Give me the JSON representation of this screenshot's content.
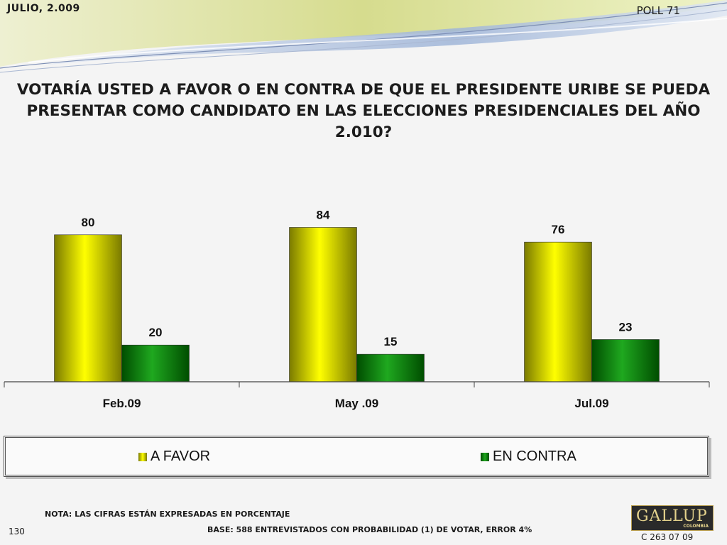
{
  "header": {
    "date": "JULIO, 2.009",
    "poll": "POLL 71"
  },
  "title": {
    "line1": "VOTARÍA USTED A FAVOR O EN CONTRA DE QUE EL PRESIDENTE URIBE SE PUEDA",
    "line2": "PRESENTAR COMO CANDIDATO EN LAS ELECCIONES PRESIDENCIALES DEL AÑO 2.010?"
  },
  "colors": {
    "favor_light": "#ffff00",
    "favor_dark": "#7a7a00",
    "contra_light": "#1fa81f",
    "contra_dark": "#004d00",
    "swoosh_green": "#c9d27a",
    "swoosh_blue": "#5d7fb0"
  },
  "chart_data": {
    "type": "bar",
    "categories": [
      "Feb.09",
      "May .09",
      "Jul.09"
    ],
    "series": [
      {
        "name": "A FAVOR",
        "values": [
          80,
          84,
          76
        ]
      },
      {
        "name": "EN CONTRA",
        "values": [
          20,
          15,
          23
        ]
      }
    ],
    "ylim": [
      0,
      100
    ],
    "grid": false,
    "legend_position": "bottom"
  },
  "footer": {
    "nota": "NOTA: LAS CIFRAS ESTÁN EXPRESADAS EN PORCENTAJE",
    "base": "BASE:  588 ENTREVISTADOS CON PROBABILIDAD (1) DE VOTAR, ERROR 4%",
    "page_number": "130",
    "code": "C 263 07 09"
  },
  "logo": {
    "main": "GALLUP",
    "sub": "COLOMBIA"
  }
}
